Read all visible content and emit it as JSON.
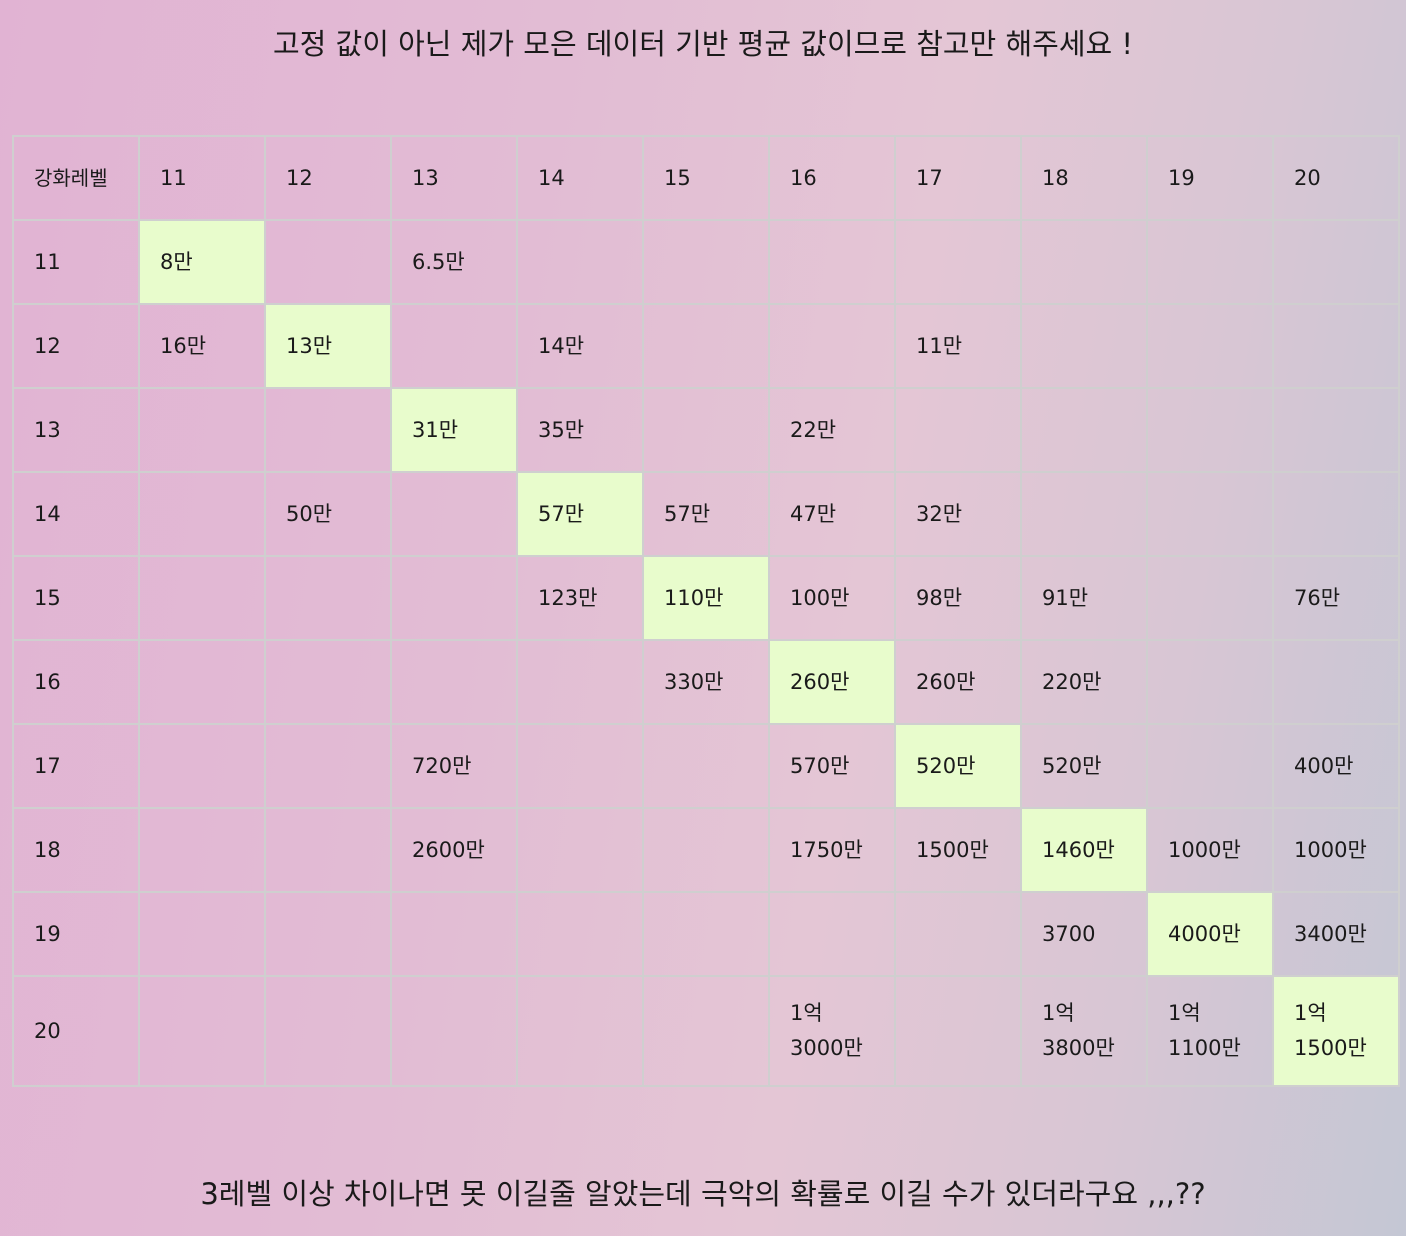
{
  "notes": {
    "top": "고정 값이 아닌 제가 모은 데이터 기반 평균 값이므로 참고만 해주세요 !",
    "bottom": "3레벨 이상 차이나면 못 이길줄 알았는데 극악의 확률로 이길 수가 있더라구요 ,,,??"
  },
  "colors": {
    "diagonal_highlight": "#e8fccc",
    "grid_line": "#cfcfcf",
    "background_left": "#e1b3d3",
    "background_right": "#c4c7d4"
  },
  "table": {
    "corner_label": "강화레벨",
    "columns": [
      "11",
      "12",
      "13",
      "14",
      "15",
      "16",
      "17",
      "18",
      "19",
      "20"
    ],
    "rows": [
      {
        "label": "11",
        "cells": [
          "8만",
          "",
          "6.5만",
          "",
          "",
          "",
          "",
          "",
          "",
          ""
        ]
      },
      {
        "label": "12",
        "cells": [
          "16만",
          "13만",
          "",
          "14만",
          "",
          "",
          "11만",
          "",
          "",
          ""
        ]
      },
      {
        "label": "13",
        "cells": [
          "",
          "",
          "31만",
          "35만",
          "",
          "22만",
          "",
          "",
          "",
          ""
        ]
      },
      {
        "label": "14",
        "cells": [
          "",
          "50만",
          "",
          "57만",
          "57만",
          "47만",
          "32만",
          "",
          "",
          ""
        ]
      },
      {
        "label": "15",
        "cells": [
          "",
          "",
          "",
          "123만",
          "110만",
          "100만",
          "98만",
          "91만",
          "",
          "76만"
        ]
      },
      {
        "label": "16",
        "cells": [
          "",
          "",
          "",
          "",
          "330만",
          "260만",
          "260만",
          "220만",
          "",
          ""
        ]
      },
      {
        "label": "17",
        "cells": [
          "",
          "",
          "720만",
          "",
          "",
          "570만",
          "520만",
          "520만",
          "",
          "400만"
        ]
      },
      {
        "label": "18",
        "cells": [
          "",
          "",
          "2600만",
          "",
          "",
          "1750만",
          "1500만",
          "1460만",
          "1000만",
          "1000만"
        ]
      },
      {
        "label": "19",
        "cells": [
          "",
          "",
          "",
          "",
          "",
          "",
          "",
          "3700",
          "4000만",
          "3400만"
        ]
      },
      {
        "label": "20",
        "cells": [
          "",
          "",
          "",
          "",
          "",
          "1억\n3000만",
          "",
          "1억\n3800만",
          "1억\n1100만",
          "1억\n1500만"
        ]
      }
    ]
  }
}
